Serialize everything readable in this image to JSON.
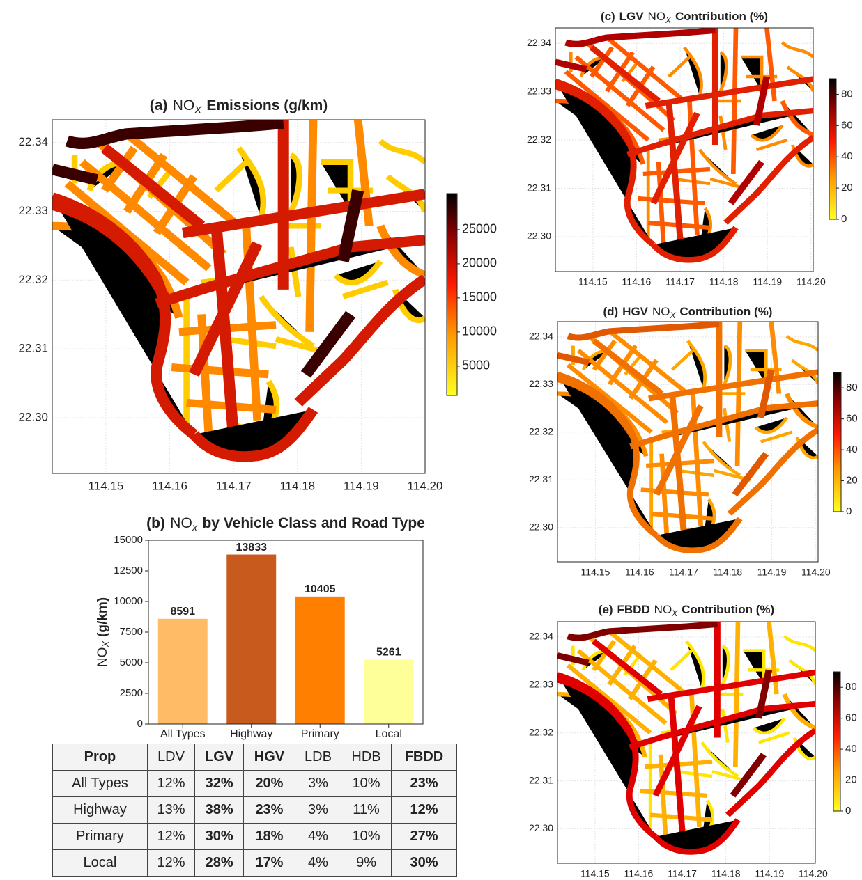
{
  "chart_data": [
    {
      "type": "map",
      "title": {
        "label": "(a)",
        "pollutant": "NO",
        "subscript": "X",
        "text": "Emissions (g/km)"
      },
      "xlim": [
        114.1416,
        114.2
      ],
      "ylim": [
        22.2919,
        22.3433
      ],
      "xticks": [
        114.15,
        114.16,
        114.17,
        114.18,
        114.19,
        {
          "value": 114.2,
          "label": "114.20"
        }
      ],
      "yticks": [
        {
          "value": 22.3,
          "label": "22.30"
        },
        22.31,
        22.32,
        22.33,
        22.34
      ],
      "grid": true,
      "colors": [
        "#3a0000",
        "#d41a00",
        "#ff8a00",
        "#ffcc00"
      ],
      "colorbar": {
        "lim": [
          700,
          30300
        ],
        "ticks": [
          5000,
          10000,
          15000,
          20000,
          25000
        ]
      }
    },
    {
      "type": "bar",
      "title": {
        "label": "(b)",
        "pollutant": "NO",
        "subscript": "x",
        "text": "by Vehicle Class and Road Type"
      },
      "ylabel": {
        "pollutant": "NO",
        "subscript": "X",
        "text": "(g/km)"
      },
      "categories": [
        "All Types",
        "Highway",
        "Primary",
        "Local"
      ],
      "values": [
        8591,
        13833,
        10405,
        5261
      ],
      "colors": [
        "#ffbb66",
        "#c85a1e",
        "#ff8000",
        "#ffff99"
      ],
      "ylim": [
        0,
        15000
      ],
      "yticks": [
        0,
        2500,
        5000,
        7500,
        10000,
        12500,
        15000
      ]
    },
    {
      "type": "map",
      "title": {
        "label": "(c)",
        "vehicle": "LGV",
        "pollutant": "NO",
        "subscript": "X",
        "text": "Contribution (%)"
      },
      "xlim": [
        114.1414,
        114.2005
      ],
      "ylim": [
        22.2928,
        22.3432
      ],
      "xticks": [
        114.15,
        114.16,
        114.17,
        114.18,
        114.19,
        {
          "value": 114.2,
          "label": "114.20"
        }
      ],
      "yticks": [
        {
          "value": 22.3,
          "label": "22.30"
        },
        22.31,
        22.32,
        22.33,
        22.34
      ],
      "grid": true,
      "colors": [
        "#b00000",
        "#e02000",
        "#ff5a00",
        "#ff8c00"
      ],
      "colorbar": {
        "lim": [
          0,
          90
        ],
        "ticks": [
          0,
          20,
          40,
          60,
          80
        ]
      }
    },
    {
      "type": "map",
      "title": {
        "label": "(d)",
        "vehicle": "HGV",
        "pollutant": "NO",
        "subscript": "X",
        "text": "Contribution (%)"
      },
      "xlim": [
        114.1414,
        114.2005
      ],
      "ylim": [
        22.2928,
        22.3432
      ],
      "xticks": [
        114.15,
        114.16,
        114.17,
        114.18,
        114.19,
        {
          "value": 114.2,
          "label": "114.20"
        }
      ],
      "yticks": [
        {
          "value": 22.3,
          "label": "22.30"
        },
        22.31,
        22.32,
        22.33,
        22.34
      ],
      "grid": true,
      "colors": [
        "#e05800",
        "#f07000",
        "#ff8c00",
        "#ffa500"
      ],
      "colorbar": {
        "lim": [
          0,
          90
        ],
        "ticks": [
          0,
          20,
          40,
          60,
          80
        ]
      }
    },
    {
      "type": "map",
      "title": {
        "label": "(e)",
        "vehicle": "FBDD",
        "pollutant": "NO",
        "subscript": "X",
        "text": "Contribution (%)"
      },
      "xlim": [
        114.1414,
        114.2005
      ],
      "ylim": [
        22.2928,
        22.3432
      ],
      "xticks": [
        114.15,
        114.16,
        114.17,
        114.18,
        114.19,
        {
          "value": 114.2,
          "label": "114.20"
        }
      ],
      "yticks": [
        {
          "value": 22.3,
          "label": "22.30"
        },
        22.31,
        22.32,
        22.33,
        22.34
      ],
      "grid": true,
      "colors": [
        "#800000",
        "#e00000",
        "#ffb000",
        "#ffe600"
      ],
      "colorbar": {
        "lim": [
          0,
          90
        ],
        "ticks": [
          0,
          20,
          40,
          60,
          80
        ]
      }
    }
  ],
  "table": {
    "header": [
      "Prop",
      "LDV",
      "LGV",
      "HGV",
      "LDB",
      "HDB",
      "FBDD"
    ],
    "rows": [
      [
        "All Types",
        "12%",
        "32%",
        "20%",
        "3%",
        "10%",
        "23%"
      ],
      [
        "Highway",
        "13%",
        "38%",
        "23%",
        "3%",
        "11%",
        "12%"
      ],
      [
        "Primary",
        "12%",
        "30%",
        "18%",
        "4%",
        "10%",
        "27%"
      ],
      [
        "Local",
        "12%",
        "28%",
        "17%",
        "4%",
        "9%",
        "30%"
      ]
    ],
    "bold_columns": [
      2,
      3,
      6
    ]
  }
}
